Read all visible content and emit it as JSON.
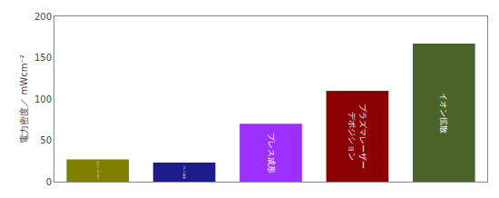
{
  "chart_data": {
    "type": "bar",
    "categories": [
      "スピンコーター",
      "プレス成形",
      "プレス成形",
      "プラズマレーザー\nデポジション",
      "イオン拡散"
    ],
    "values": [
      27,
      23,
      70,
      110,
      167
    ],
    "colors": [
      "#808000",
      "#1C1C8B",
      "#9B30FF",
      "#8B0000",
      "#4A6328"
    ],
    "ylabel": "電力密度／ mWcm⁻²",
    "ylim": [
      0,
      200
    ],
    "yticks": [
      0,
      50,
      100,
      150,
      200
    ],
    "grid": false,
    "tick_labels": "y"
  }
}
